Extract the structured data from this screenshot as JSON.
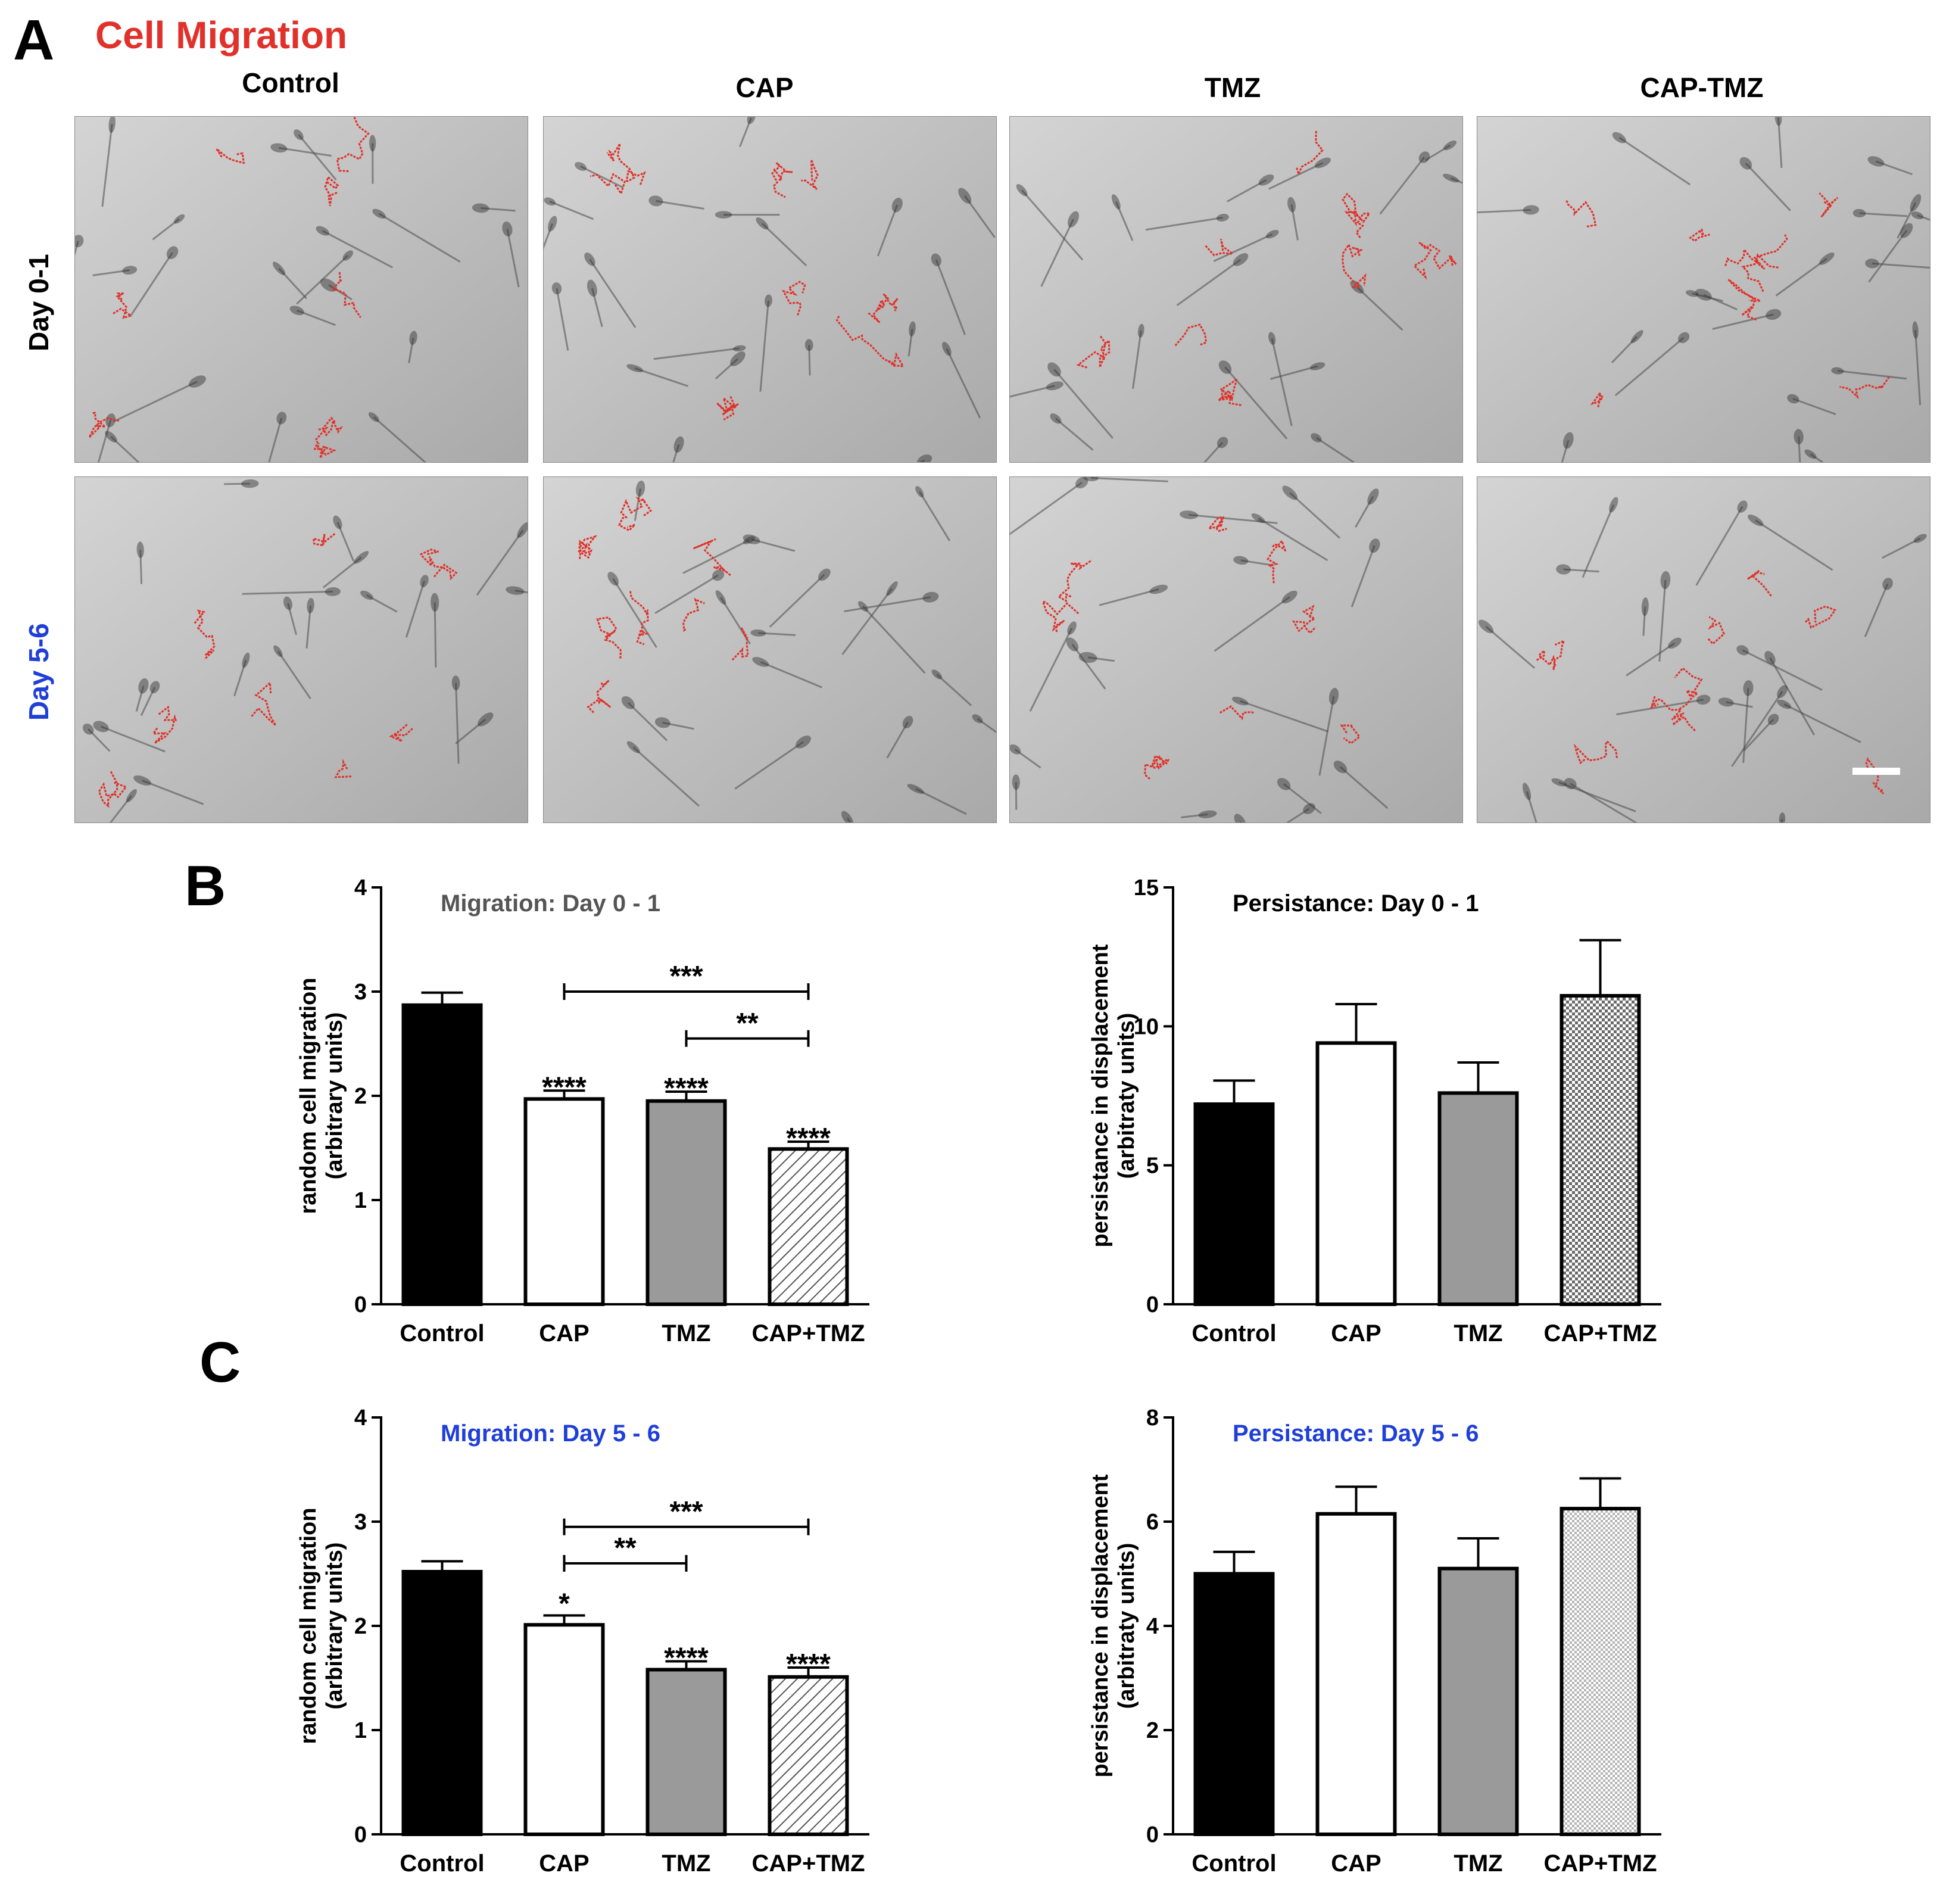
{
  "panel_a": {
    "letter": "A",
    "title": "Cell Migration",
    "columns": [
      "Control",
      "CAP",
      "TMZ",
      "CAP-TMZ"
    ],
    "rows": [
      {
        "label": "Day 0-1",
        "color": "#000000"
      },
      {
        "label": "Day 5-6",
        "color": "#1f3fd8"
      }
    ],
    "track_color": "#e0322b"
  },
  "panel_b": {
    "letter": "B"
  },
  "panel_c": {
    "letter": "C"
  },
  "chart_data": [
    {
      "id": "b_migration",
      "type": "bar",
      "title": "Migration: Day 0 - 1",
      "title_color": "#555555",
      "ylabel": [
        "random cell migration",
        "(arbitrary units)"
      ],
      "categories": [
        "Control",
        "CAP",
        "TMZ",
        "CAP+TMZ"
      ],
      "values": [
        2.87,
        1.97,
        1.95,
        1.49
      ],
      "errors": [
        0.12,
        0.08,
        0.09,
        0.07
      ],
      "fills": [
        "solid-black",
        "white",
        "gray",
        "diagonal-hatch"
      ],
      "ylim": [
        0,
        4
      ],
      "yticks": [
        0,
        1,
        2,
        3,
        4
      ],
      "significance": [
        {
          "bar": 1,
          "label": "****"
        },
        {
          "bar": 2,
          "label": "****"
        },
        {
          "bar": 3,
          "label": "****"
        }
      ],
      "brackets": [
        {
          "from": 1,
          "to": 3,
          "y": 3.0,
          "label": "***"
        },
        {
          "from": 2,
          "to": 3,
          "y": 2.55,
          "label": "**"
        }
      ]
    },
    {
      "id": "b_persistance",
      "type": "bar",
      "title": "Persistance: Day 0 - 1",
      "title_color": "#000000",
      "ylabel": [
        "persistance in displacement",
        "(arbitraty units)"
      ],
      "categories": [
        "Control",
        "CAP",
        "TMZ",
        "CAP+TMZ"
      ],
      "values": [
        7.2,
        9.4,
        7.6,
        11.1
      ],
      "errors": [
        0.85,
        1.4,
        1.1,
        2.0
      ],
      "fills": [
        "solid-black",
        "white",
        "gray",
        "checker"
      ],
      "ylim": [
        0,
        15
      ],
      "yticks": [
        0,
        5,
        10,
        15
      ],
      "significance": [],
      "brackets": []
    },
    {
      "id": "c_migration",
      "type": "bar",
      "title": "Migration: Day 5 - 6",
      "title_color": "#1f3fd8",
      "ylabel": [
        "random cell migration",
        "(arbitrary units)"
      ],
      "categories": [
        "Control",
        "CAP",
        "TMZ",
        "CAP+TMZ"
      ],
      "values": [
        2.52,
        2.01,
        1.58,
        1.51
      ],
      "errors": [
        0.1,
        0.09,
        0.08,
        0.09
      ],
      "fills": [
        "solid-black",
        "white",
        "gray",
        "diagonal-hatch"
      ],
      "ylim": [
        0,
        4
      ],
      "yticks": [
        0,
        1,
        2,
        3,
        4
      ],
      "significance": [
        {
          "bar": 1,
          "label": "*"
        },
        {
          "bar": 2,
          "label": "****"
        },
        {
          "bar": 3,
          "label": "****"
        }
      ],
      "brackets": [
        {
          "from": 1,
          "to": 3,
          "y": 2.95,
          "label": "***"
        },
        {
          "from": 1,
          "to": 2,
          "y": 2.6,
          "label": "**"
        }
      ]
    },
    {
      "id": "c_persistance",
      "type": "bar",
      "title": "Persistance: Day 5 - 6",
      "title_color": "#1f3fd8",
      "ylabel": [
        "persistance in displacement",
        "(arbitraty units)"
      ],
      "categories": [
        "Control",
        "CAP",
        "TMZ",
        "CAP+TMZ"
      ],
      "values": [
        5.0,
        6.15,
        5.1,
        6.25
      ],
      "errors": [
        0.42,
        0.52,
        0.58,
        0.58
      ],
      "fills": [
        "solid-black",
        "white",
        "gray",
        "fine-checker"
      ],
      "ylim": [
        0,
        8
      ],
      "yticks": [
        0,
        2,
        4,
        6,
        8
      ],
      "significance": [],
      "brackets": []
    }
  ]
}
